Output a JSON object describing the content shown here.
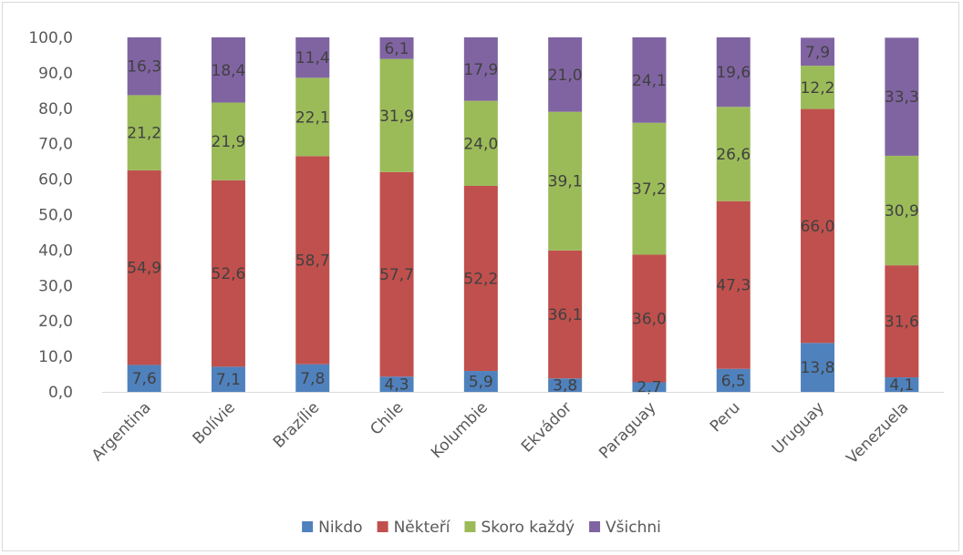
{
  "chart_data": {
    "type": "bar",
    "stacked": true,
    "title": "",
    "xlabel": "",
    "ylabel": "",
    "ylim": [
      0,
      100
    ],
    "yticks": [
      "0,0",
      "10,0",
      "20,0",
      "30,0",
      "40,0",
      "50,0",
      "60,0",
      "70,0",
      "80,0",
      "90,0",
      "100,0"
    ],
    "categories": [
      "Argentina",
      "Bolívie",
      "Brazílie",
      "Chile",
      "Kolumbie",
      "Ekvádor",
      "Paraguay",
      "Peru",
      "Uruguay",
      "Venezuela"
    ],
    "series": [
      {
        "name": "Nikdo",
        "color": "#4f81bd",
        "values": [
          7.6,
          7.1,
          7.8,
          4.3,
          5.9,
          3.8,
          2.7,
          6.5,
          13.8,
          4.1
        ],
        "labels": [
          "7,6",
          "7,1",
          "7,8",
          "4,3",
          "5,9",
          "3,8",
          "2,7",
          "6,5",
          "13,8",
          "4,1"
        ]
      },
      {
        "name": "Někteří",
        "color": "#c0504d",
        "values": [
          54.9,
          52.6,
          58.7,
          57.7,
          52.2,
          36.1,
          36.0,
          47.3,
          66.0,
          31.6
        ],
        "labels": [
          "54,9",
          "52,6",
          "58,7",
          "57,7",
          "52,2",
          "36,1",
          "36,0",
          "47,3",
          "66,0",
          "31,6"
        ]
      },
      {
        "name": "Skoro každý",
        "color": "#9bbb59",
        "values": [
          21.2,
          21.9,
          22.1,
          31.9,
          24.0,
          39.1,
          37.2,
          26.6,
          12.2,
          30.9
        ],
        "labels": [
          "21,2",
          "21,9",
          "22,1",
          "31,9",
          "24,0",
          "39,1",
          "37,2",
          "26,6",
          "12,2",
          "30,9"
        ]
      },
      {
        "name": "Všichni",
        "color": "#8064a2",
        "values": [
          16.3,
          18.4,
          11.4,
          6.1,
          17.9,
          21.0,
          24.1,
          19.6,
          7.9,
          33.3
        ],
        "labels": [
          "16,3",
          "18,4",
          "11,4",
          "6,1",
          "17,9",
          "21,0",
          "24,1",
          "19,6",
          "7,9",
          "33,3"
        ]
      }
    ],
    "grid": false,
    "legend": "bottom",
    "data_labels": true
  }
}
